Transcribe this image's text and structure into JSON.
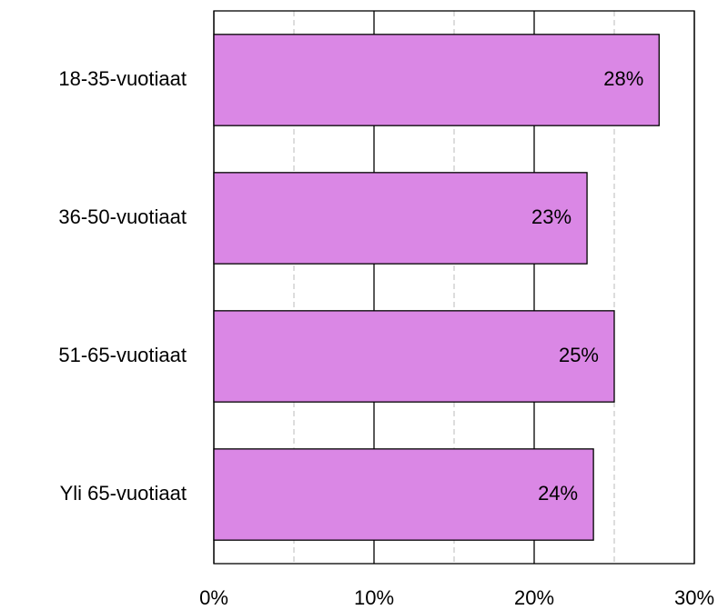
{
  "chart_data": {
    "type": "bar",
    "orientation": "horizontal",
    "categories": [
      "18-35-vuotiaat",
      "36-50-vuotiaat",
      "51-65-vuotiaat",
      "Yli 65-vuotiaat"
    ],
    "values": [
      27.8,
      23.3,
      25.0,
      23.7
    ],
    "value_labels": [
      "28%",
      "23%",
      "25%",
      "24%"
    ],
    "color": "#da87e5",
    "xlim": [
      0,
      30
    ],
    "xticks": [
      {
        "value": 0,
        "label": "0%"
      },
      {
        "value": 10,
        "label": "10%"
      },
      {
        "value": 20,
        "label": "20%"
      },
      {
        "value": 30,
        "label": "30%"
      }
    ],
    "minor_xticks": [
      5,
      15,
      25
    ],
    "grid": true
  }
}
